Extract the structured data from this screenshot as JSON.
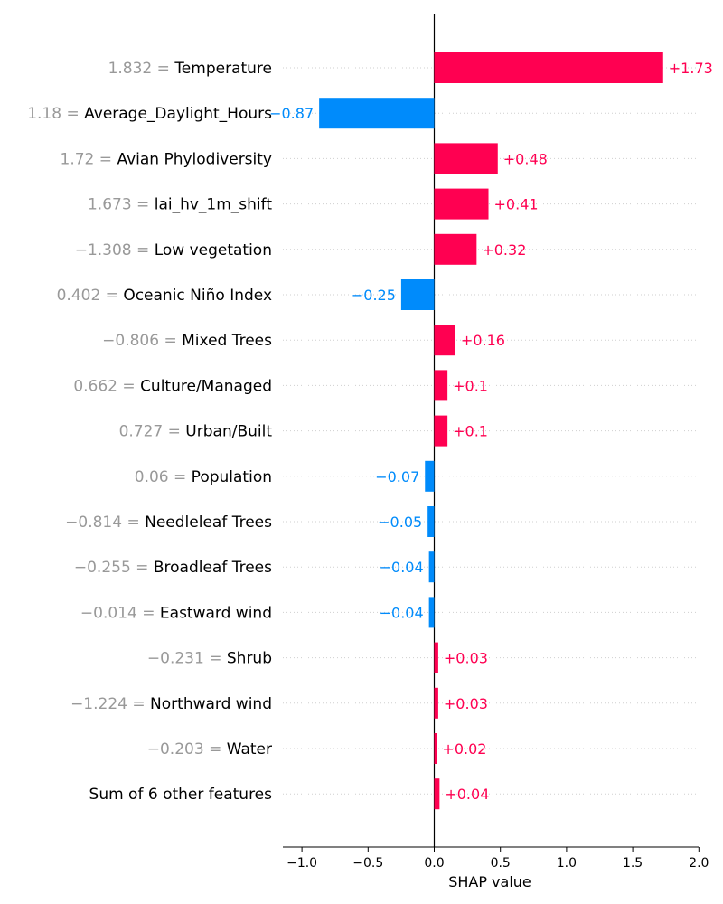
{
  "chart_data": {
    "type": "bar",
    "orientation": "horizontal",
    "xlabel": "SHAP value",
    "xlim": [
      -1.15,
      2.0
    ],
    "xticks": [
      -1.0,
      -0.5,
      0.0,
      0.5,
      1.0,
      1.5,
      2.0
    ],
    "xtick_labels": [
      "−1.0",
      "−0.5",
      "0.0",
      "0.5",
      "1.0",
      "1.5",
      "2.0"
    ],
    "grid": "horizontal dotted lines per feature",
    "colors": {
      "positive": "#ff0051",
      "negative": "#008bfb",
      "feature_value": "#999999",
      "text": "#000000"
    },
    "features": [
      {
        "value_text": "1.832",
        "name": "Temperature",
        "shap": 1.73,
        "label": "+1.73"
      },
      {
        "value_text": "1.18",
        "name": "Average_Daylight_Hours",
        "shap": -0.87,
        "label": "−0.87"
      },
      {
        "value_text": "1.72",
        "name": "Avian Phylodiversity",
        "shap": 0.48,
        "label": "+0.48"
      },
      {
        "value_text": "1.673",
        "name": "lai_hv_1m_shift",
        "shap": 0.41,
        "label": "+0.41"
      },
      {
        "value_text": "−1.308",
        "name": "Low vegetation",
        "shap": 0.32,
        "label": "+0.32"
      },
      {
        "value_text": "0.402",
        "name": "Oceanic Niño Index",
        "shap": -0.25,
        "label": "−0.25"
      },
      {
        "value_text": "−0.806",
        "name": "Mixed Trees",
        "shap": 0.16,
        "label": "+0.16"
      },
      {
        "value_text": "0.662",
        "name": "Culture/Managed",
        "shap": 0.1,
        "label": "+0.1"
      },
      {
        "value_text": "0.727",
        "name": "Urban/Built",
        "shap": 0.1,
        "label": "+0.1"
      },
      {
        "value_text": "0.06",
        "name": "Population",
        "shap": -0.07,
        "label": "−0.07"
      },
      {
        "value_text": "−0.814",
        "name": "Needleleaf Trees",
        "shap": -0.05,
        "label": "−0.05"
      },
      {
        "value_text": "−0.255",
        "name": "Broadleaf Trees",
        "shap": -0.04,
        "label": "−0.04"
      },
      {
        "value_text": "−0.014",
        "name": "Eastward wind",
        "shap": -0.04,
        "label": "−0.04"
      },
      {
        "value_text": "−0.231",
        "name": "Shrub",
        "shap": 0.03,
        "label": "+0.03"
      },
      {
        "value_text": "−1.224",
        "name": "Northward wind",
        "shap": 0.03,
        "label": "+0.03"
      },
      {
        "value_text": "−0.203",
        "name": "Water",
        "shap": 0.02,
        "label": "+0.02"
      },
      {
        "value_text": "",
        "name": "Sum of 6 other features",
        "shap": 0.04,
        "label": "+0.04"
      }
    ]
  }
}
